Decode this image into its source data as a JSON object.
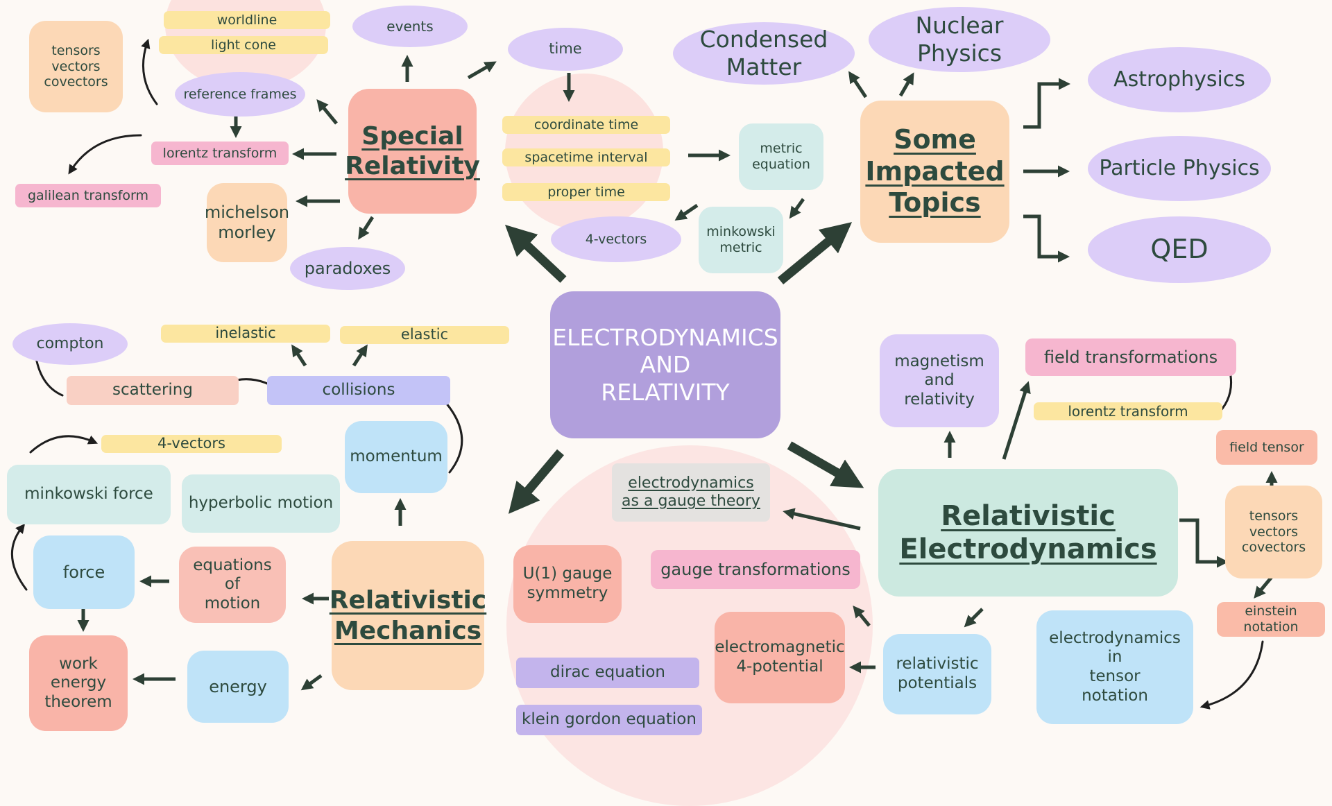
{
  "colors": {
    "background": "#fdf9f5",
    "text": "#2d4a3e",
    "arrow": "#2d4035",
    "purple_main": "#b19fdc",
    "lavender": "#dccdf8",
    "salmon": "#f9b4a8",
    "peach": "#fcd8b6",
    "mint": "#cce9e0",
    "teal_light": "#d4ecea",
    "sky": "#bfe3f8",
    "yellow": "#fce6a0",
    "pink": "#f6b6cf",
    "periwinkle": "#c3c3f7",
    "grey": "#e4e2e0",
    "blob_pink": "#fce2df"
  },
  "center": {
    "title": "ELECTRODYNAMICS\nAND\nRELATIVITY"
  },
  "special_relativity": {
    "title": "Special\nRelativity",
    "worldline": "worldline",
    "light_cone": "light cone",
    "events": "events",
    "tensors": "tensors\nvectors\ncovectors",
    "reference_frames": "reference frames",
    "lorentz_transform": "lorentz transform",
    "galilean_transform": "galilean transform",
    "michelson_morley": "michelson\nmorley",
    "paradoxes": "paradoxes",
    "time": "time",
    "coordinate_time": "coordinate time",
    "spacetime_interval": "spacetime interval",
    "proper_time": "proper time",
    "four_vectors": "4-vectors",
    "metric_equation": "metric\nequation",
    "minkowski_metric": "minkowski\nmetric"
  },
  "impacted_topics": {
    "title": "Some\nImpacted\nTopics",
    "condensed_matter": "Condensed\nMatter",
    "nuclear_physics": "Nuclear\nPhysics",
    "astrophysics": "Astrophysics",
    "particle_physics": "Particle Physics",
    "qed": "QED"
  },
  "relativistic_mechanics": {
    "title": "Relativistic\nMechanics",
    "compton": "compton",
    "inelastic": "inelastic",
    "elastic": "elastic",
    "scattering": "scattering",
    "collisions": "collisions",
    "four_vectors": "4-vectors",
    "minkowski_force": "minkowski force",
    "hyperbolic_motion": "hyperbolic motion",
    "momentum": "momentum",
    "force": "force",
    "equations_of_motion": "equations\nof\nmotion",
    "work_energy": "work\nenergy\ntheorem",
    "energy": "energy"
  },
  "gauge": {
    "gauge_theory": "electrodynamics\nas a gauge theory",
    "u1_symmetry": "U(1) gauge\nsymmetry",
    "gauge_transformations": "gauge transformations",
    "dirac": "dirac equation",
    "klein_gordon": "klein gordon equation",
    "em_potential": "electromagnetic\n4-potential"
  },
  "relativistic_electrodynamics": {
    "title": "Relativistic\nElectrodynamics",
    "magnetism": "magnetism\nand\nrelativity",
    "field_transformations": "field transformations",
    "lorentz_transform": "lorentz transform",
    "field_tensor": "field tensor",
    "tensors": "tensors\nvectors\ncovectors",
    "einstein_notation": "einstein notation",
    "tensor_notation": "electrodynamics\nin\ntensor\nnotation",
    "potentials": "relativistic\npotentials"
  }
}
